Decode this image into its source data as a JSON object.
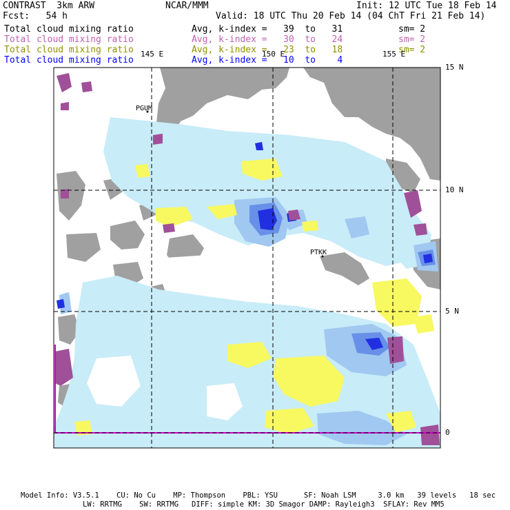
{
  "header": {
    "model": "CONTRAST  3km ARW",
    "org": "NCAR/MMM",
    "init": "Init: 12 UTC Tue 18 Feb 14",
    "fcst": "Fcst:   54 h",
    "valid": "Valid: 18 UTC Thu 20 Feb 14 (04 ChT Fri 21 Feb 14)"
  },
  "fields": [
    {
      "name": "Total cloud mixing ratio",
      "range": "Avg, k-index =   39  to   31",
      "sm": "sm= 2",
      "color": "#000000"
    },
    {
      "name": "Total cloud mixing ratio",
      "range": "Avg, k-index =   30  to   24",
      "sm": "sm= 2",
      "color": "#c060b0"
    },
    {
      "name": "Total cloud mixing ratio",
      "range": "Avg, k-index =   23  to   18",
      "sm": "sm= 2",
      "color": "#909000"
    },
    {
      "name": "Total cloud mixing ratio",
      "range": "Avg, k-index =   10  to    4",
      "sm": "",
      "color": "#0000ff"
    }
  ],
  "grid": {
    "lon_labels": [
      "145 E",
      "150 E",
      "155 E"
    ],
    "lat_labels": [
      "15 N",
      "10 N",
      "5 N",
      "0"
    ]
  },
  "stations": [
    "PGUM",
    "PTKK"
  ],
  "footer": {
    "line1": "Model Info: V3.5.1    CU: No Cu    MP: Thompson    PBL: YSU      SF: Noah LSM     3.0 km   39 levels   18 sec",
    "line2": "LW: RRTMG    SW: RRTMG   DIFF: simple KM: 3D Smagor DAMP: Rayleigh3  SFLAY: Rev MM5"
  },
  "colors": {
    "gray": "#a0a0a0",
    "light_cyan": "#c8ecf8",
    "light_blue": "#a0c8f0",
    "mid_blue": "#6890e8",
    "blue": "#2030e0",
    "yellow": "#f8f860",
    "purple": "#a05098",
    "magenta": "#d000d0"
  }
}
